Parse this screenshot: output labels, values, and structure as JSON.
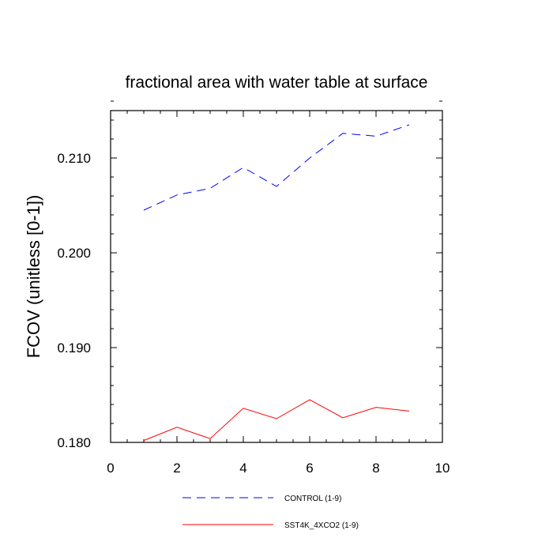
{
  "chart_data": {
    "type": "line",
    "title": "fractional area with water table at surface",
    "xlabel": "",
    "ylabel": "FCOV  (unitless [0-1])",
    "xlim": [
      0,
      10
    ],
    "ylim": [
      0.18,
      0.215
    ],
    "xticks": [
      0,
      2,
      4,
      6,
      8,
      10
    ],
    "xtick_labels": [
      "0",
      "2",
      "4",
      "6",
      "8",
      "10"
    ],
    "yticks": [
      0.18,
      0.19,
      0.2,
      0.21
    ],
    "ytick_labels": [
      "0.180",
      "0.190",
      "0.200",
      "0.210"
    ],
    "x_minor_step": 0.5,
    "y_minor_step": 0.002,
    "x": [
      1,
      2,
      3,
      4,
      5,
      6,
      7,
      8,
      9
    ],
    "series": [
      {
        "name": "CONTROL (1-9)",
        "color": "#0000ff",
        "dash": "dashed",
        "values": [
          0.2045,
          0.2061,
          0.2068,
          0.209,
          0.207,
          0.21,
          0.2126,
          0.2123,
          0.2135
        ]
      },
      {
        "name": "SST4K_4XCO2 (1-9)",
        "color": "#ff0000",
        "dash": "solid",
        "values": [
          0.1802,
          0.1816,
          0.1804,
          0.1836,
          0.1825,
          0.1845,
          0.1826,
          0.1837,
          0.1833
        ]
      }
    ]
  }
}
